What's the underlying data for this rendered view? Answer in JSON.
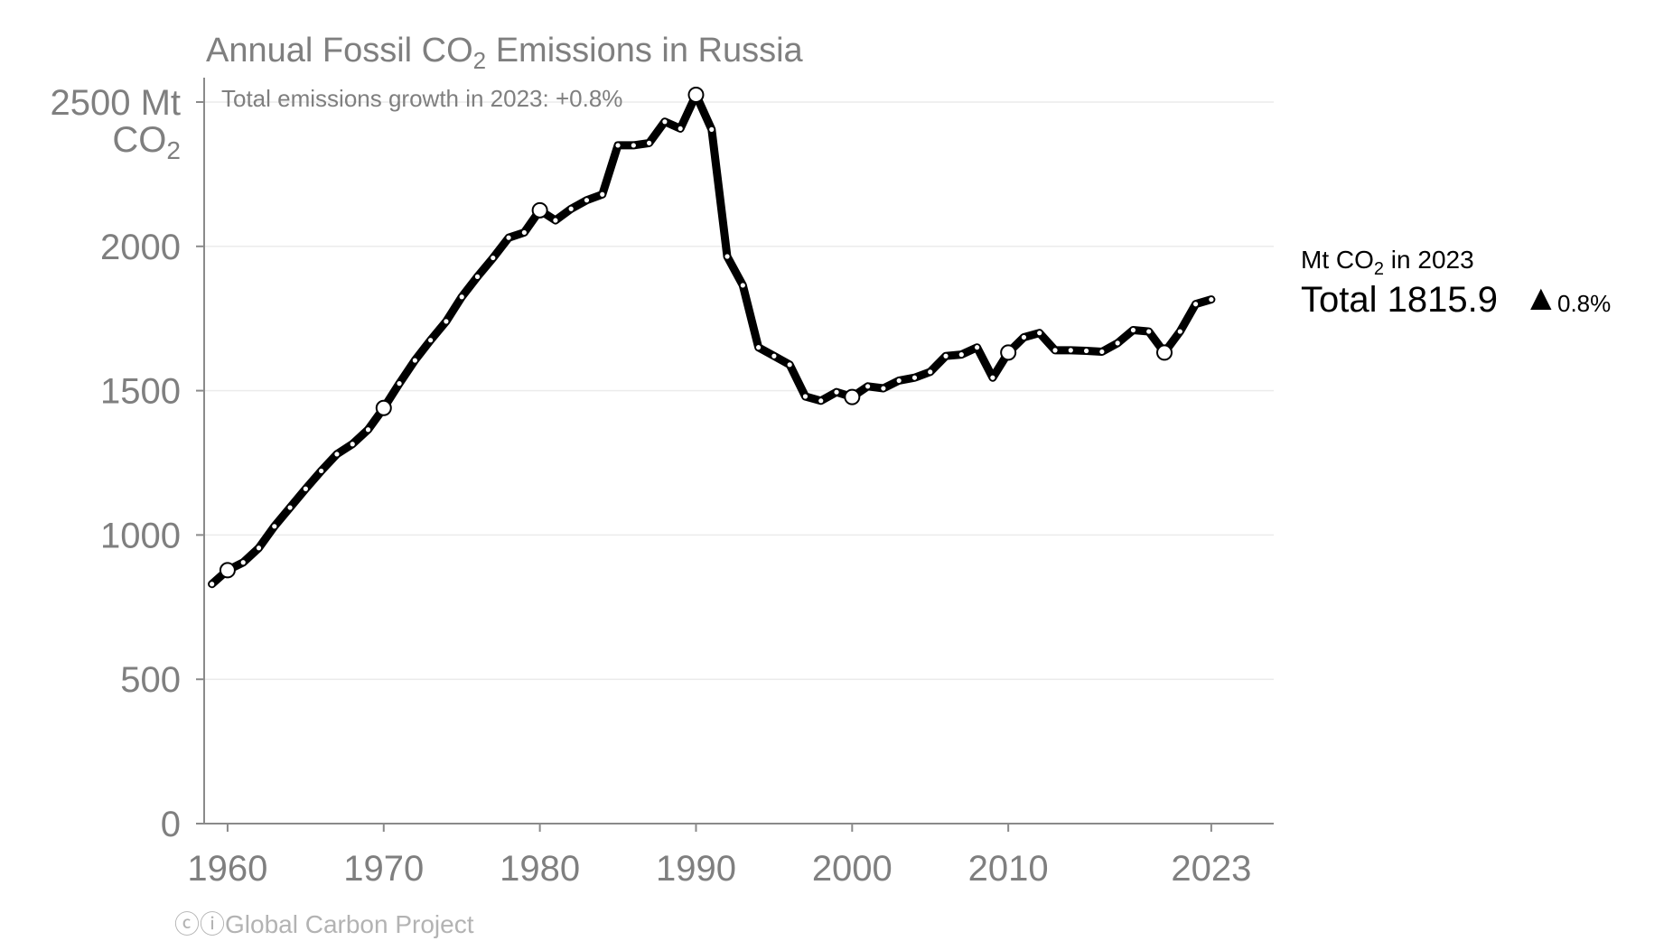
{
  "chart_data": {
    "type": "line",
    "title": {
      "pre": "Annual Fossil CO",
      "sub": "2",
      "post": " Emissions in Russia"
    },
    "subtitle": "Total emissions growth in 2023: +0.8%",
    "ylabel_top": "2500 Mt",
    "ylabel_unit": {
      "pre": "CO",
      "sub": "2"
    },
    "y_ticks": [
      {
        "value": 0,
        "label": "0"
      },
      {
        "value": 500,
        "label": "500"
      },
      {
        "value": 1000,
        "label": "1000"
      },
      {
        "value": 1500,
        "label": "1500"
      },
      {
        "value": 2000,
        "label": "2000"
      }
    ],
    "x_ticks": [
      {
        "value": 1960,
        "label": "1960"
      },
      {
        "value": 1970,
        "label": "1970"
      },
      {
        "value": 1980,
        "label": "1980"
      },
      {
        "value": 1990,
        "label": "1990"
      },
      {
        "value": 2000,
        "label": "2000"
      },
      {
        "value": 2010,
        "label": "2010"
      },
      {
        "value": 2023,
        "label": "2023"
      }
    ],
    "xlim": [
      1958.5,
      2027
    ],
    "ylim": [
      0,
      2500
    ],
    "grid": true,
    "series_color": "#000000",
    "x": [
      1959,
      1960,
      1961,
      1962,
      1963,
      1964,
      1965,
      1966,
      1967,
      1968,
      1969,
      1970,
      1971,
      1972,
      1973,
      1974,
      1975,
      1976,
      1977,
      1978,
      1979,
      1980,
      1981,
      1982,
      1983,
      1984,
      1985,
      1986,
      1987,
      1988,
      1989,
      1990,
      1991,
      1992,
      1993,
      1994,
      1995,
      1996,
      1997,
      1998,
      1999,
      2000,
      2001,
      2002,
      2003,
      2004,
      2005,
      2006,
      2007,
      2008,
      2009,
      2010,
      2011,
      2012,
      2013,
      2014,
      2015,
      2016,
      2017,
      2018,
      2019,
      2020,
      2021,
      2022,
      2023
    ],
    "y": [
      830,
      878,
      905,
      955,
      1030,
      1095,
      1160,
      1222,
      1280,
      1315,
      1365,
      1440,
      1525,
      1605,
      1675,
      1740,
      1825,
      1895,
      1960,
      2030,
      2048,
      2125,
      2090,
      2130,
      2160,
      2180,
      2350,
      2350,
      2358,
      2432,
      2408,
      2525,
      2405,
      1965,
      1865,
      1650,
      1620,
      1590,
      1480,
      1465,
      1495,
      1478,
      1515,
      1508,
      1535,
      1545,
      1565,
      1620,
      1625,
      1650,
      1545,
      1632,
      1685,
      1700,
      1640,
      1640,
      1638,
      1635,
      1665,
      1710,
      1705,
      1632,
      1705,
      1800,
      1815.9
    ],
    "highlight_years": [
      1960,
      1970,
      1980,
      1990,
      2000,
      2010,
      2020
    ],
    "legend": {
      "header": {
        "pre": "Mt CO",
        "sub": "2",
        "post": " in 2023"
      },
      "total_label": "Total 1815.9",
      "change_symbol": "▲",
      "change": "0.8%"
    }
  },
  "credit": {
    "icons": "ⓒⓘ",
    "text": "Global Carbon Project"
  }
}
